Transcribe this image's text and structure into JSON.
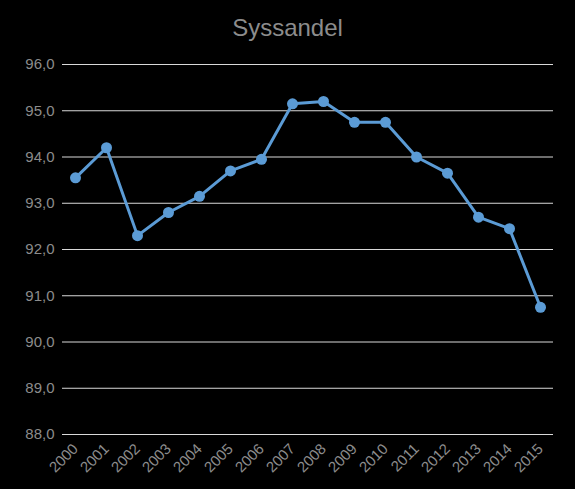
{
  "chart_data": {
    "type": "line",
    "title": "Syssandel",
    "categories": [
      "2000",
      "2001",
      "2002",
      "2003",
      "2004",
      "2005",
      "2006",
      "2007",
      "2008",
      "2009",
      "2010",
      "2011",
      "2012",
      "2013",
      "2014",
      "2015"
    ],
    "values": [
      93.55,
      94.2,
      92.3,
      92.8,
      93.15,
      93.7,
      93.95,
      95.15,
      95.2,
      94.75,
      94.75,
      94.0,
      93.65,
      92.7,
      92.45,
      90.75
    ],
    "color": "#5b9bd5",
    "marker": "circle",
    "ylim": [
      88,
      96
    ],
    "yticks": [
      {
        "value": 88,
        "label": "88,0"
      },
      {
        "value": 89,
        "label": "89,0"
      },
      {
        "value": 90,
        "label": "90,0"
      },
      {
        "value": 91,
        "label": "91,0"
      },
      {
        "value": 92,
        "label": "92,0"
      },
      {
        "value": 93,
        "label": "93,0"
      },
      {
        "value": 94,
        "label": "94,0"
      },
      {
        "value": 95,
        "label": "95,0"
      },
      {
        "value": 96,
        "label": "96,0"
      }
    ],
    "grid": true
  }
}
